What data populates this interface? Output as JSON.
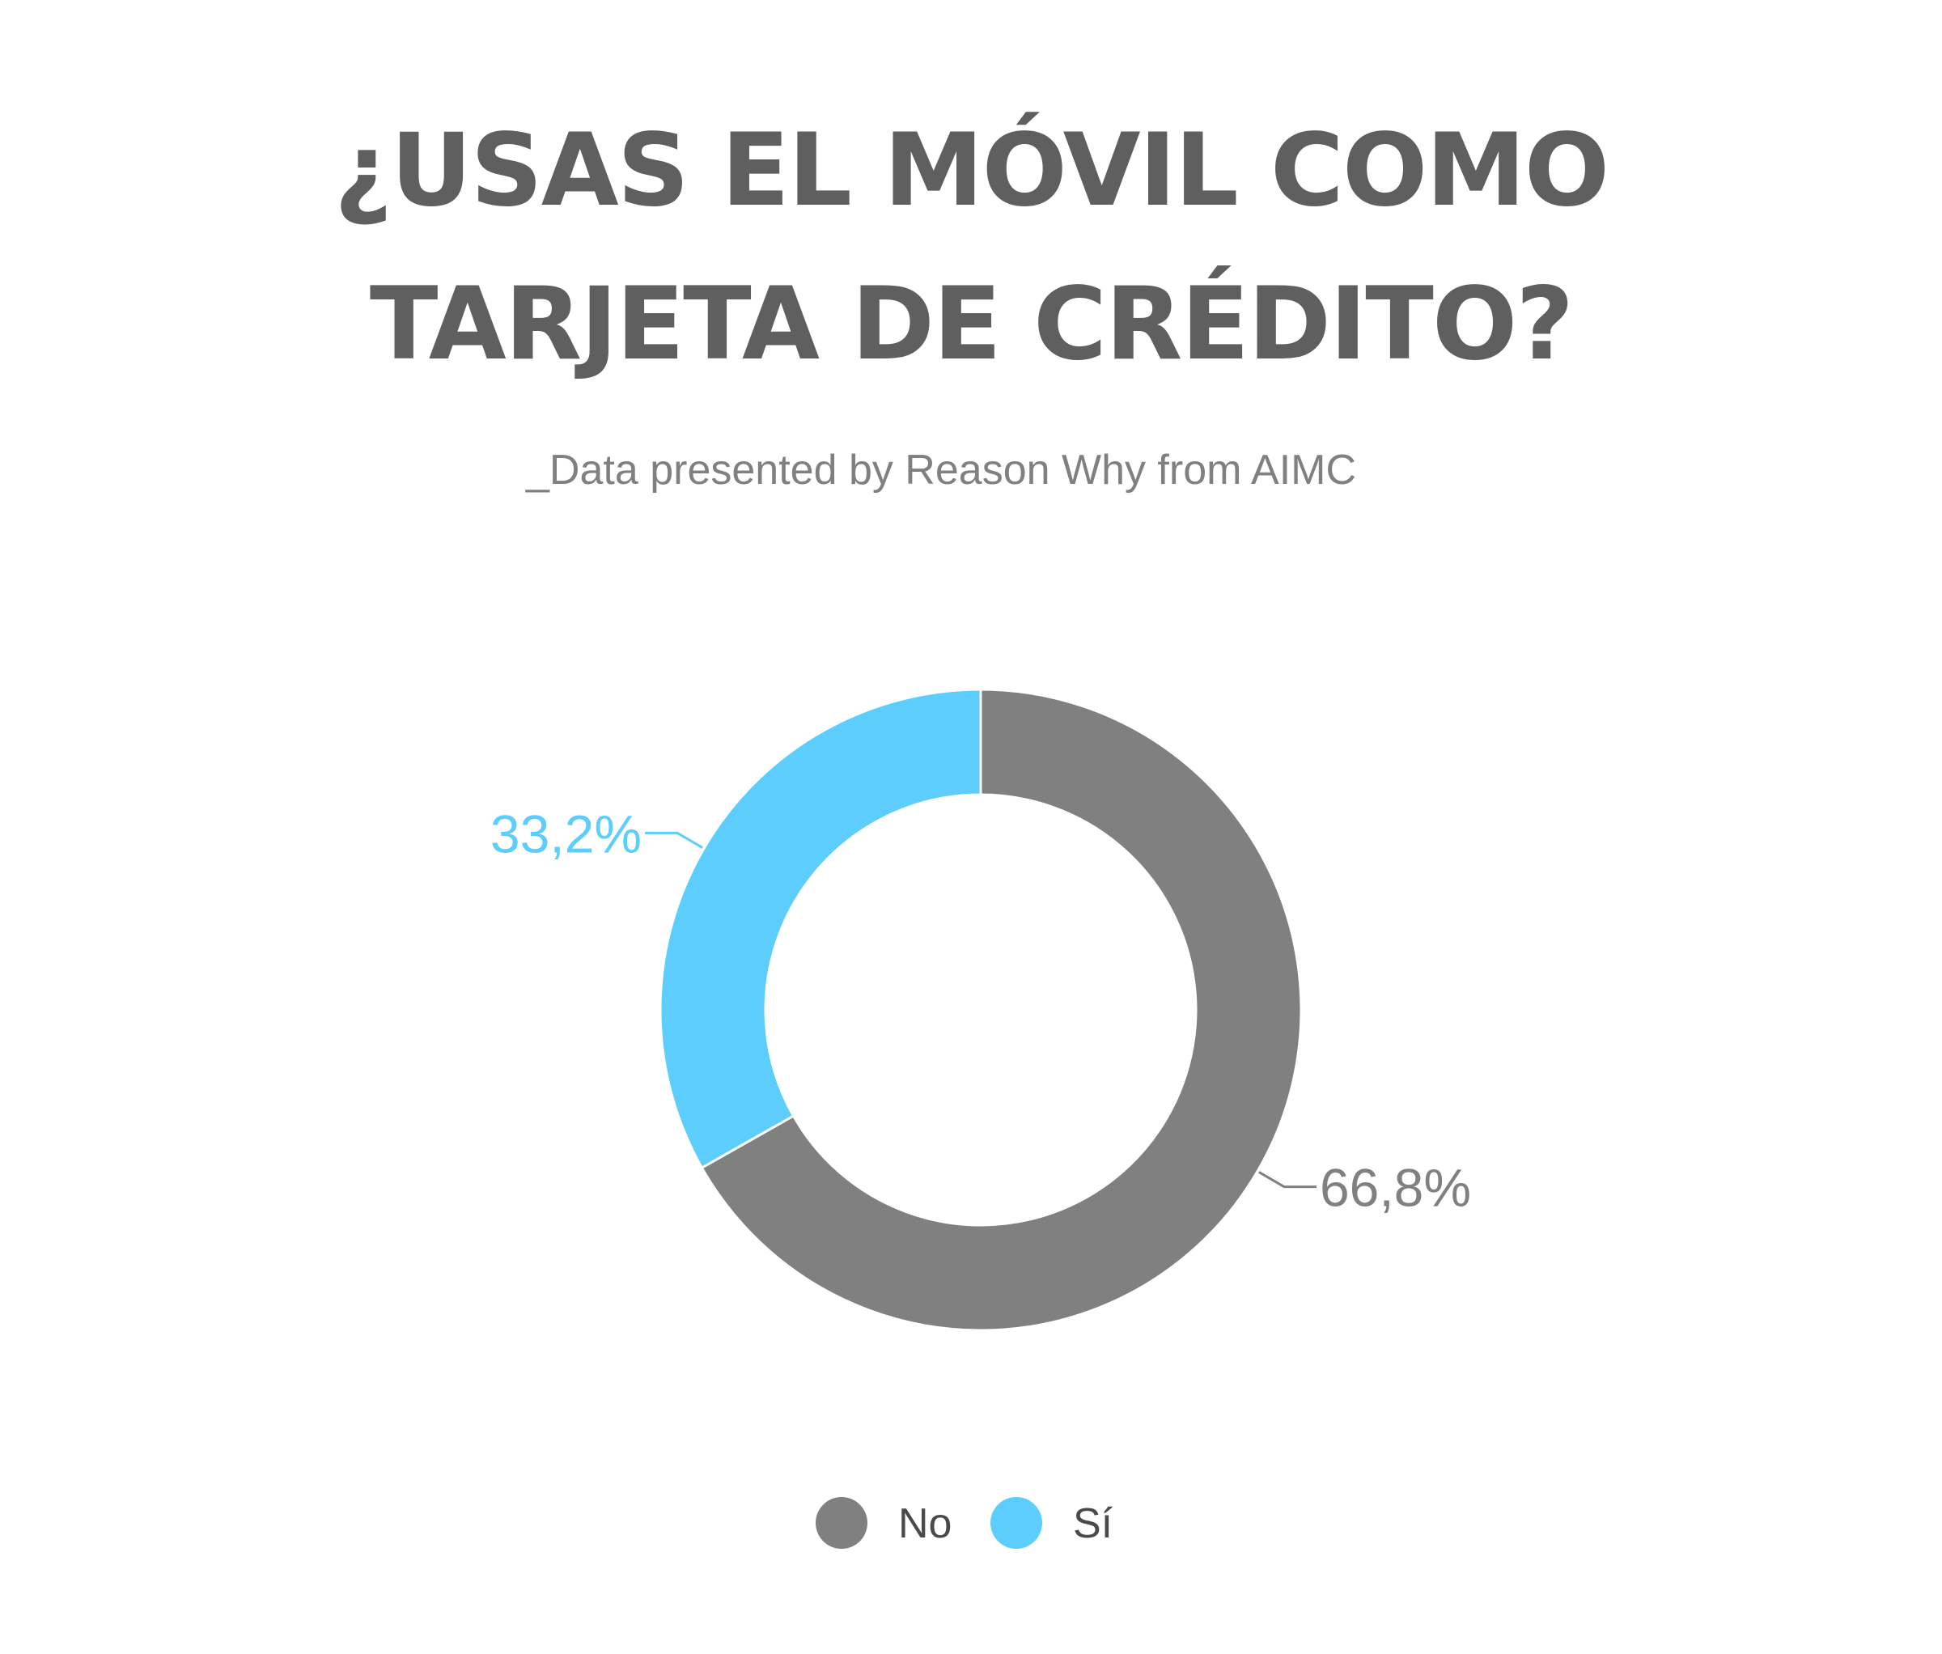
{
  "chart_data": {
    "type": "pie",
    "style": "donut",
    "title_lines": [
      "¿USAS EL MÓVIL COMO",
      "TARJETA DE CRÉDITO?"
    ],
    "subtitle": "_Data presented by Reason Why from AIMC",
    "categories": [
      "No",
      "Sí"
    ],
    "values": [
      66.8,
      33.2
    ],
    "value_labels": [
      "66,8%",
      "33,2%"
    ],
    "legend_placement": "bottom",
    "colors": {
      "no": "#808080",
      "si": "#5ccdfc",
      "title": "#5f5f5f",
      "subtitle": "#808080",
      "legend_text": "#4a4a4a"
    }
  }
}
